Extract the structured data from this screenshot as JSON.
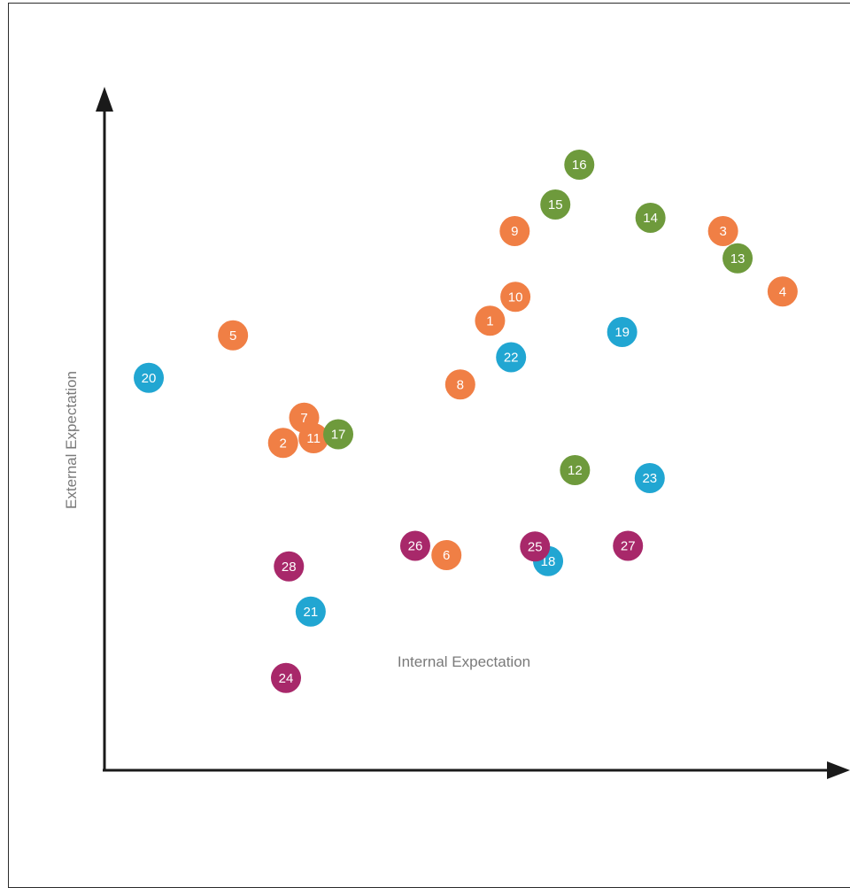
{
  "chart_data": {
    "type": "scatter",
    "title": "",
    "xlabel": "Internal Expectation",
    "ylabel": "External Expectation",
    "xlim": [
      0,
      100
    ],
    "ylim": [
      0,
      100
    ],
    "grid": false,
    "colors": {
      "orange": "#F07F45",
      "green": "#6E9A3C",
      "blue": "#21A6D2",
      "magenta": "#A8286A",
      "axis": "#1a1a1a"
    },
    "points": [
      {
        "label": "1",
        "x": 53.1,
        "y": 67.7,
        "color": "orange"
      },
      {
        "label": "2",
        "x": 24.6,
        "y": 49.3,
        "color": "orange"
      },
      {
        "label": "3",
        "x": 85.2,
        "y": 81.2,
        "color": "orange"
      },
      {
        "label": "4",
        "x": 93.4,
        "y": 72.1,
        "color": "orange"
      },
      {
        "label": "5",
        "x": 17.7,
        "y": 65.5,
        "color": "orange"
      },
      {
        "label": "6",
        "x": 47.1,
        "y": 32.4,
        "color": "orange"
      },
      {
        "label": "7",
        "x": 27.5,
        "y": 53.1,
        "color": "orange"
      },
      {
        "label": "8",
        "x": 49.0,
        "y": 58.1,
        "color": "orange"
      },
      {
        "label": "9",
        "x": 56.5,
        "y": 81.2,
        "color": "orange"
      },
      {
        "label": "10",
        "x": 56.6,
        "y": 71.3,
        "color": "orange"
      },
      {
        "label": "11",
        "x": 28.8,
        "y": 50.0,
        "color": "orange"
      },
      {
        "label": "12",
        "x": 64.8,
        "y": 45.2,
        "color": "green"
      },
      {
        "label": "13",
        "x": 87.2,
        "y": 77.1,
        "color": "green"
      },
      {
        "label": "14",
        "x": 75.2,
        "y": 83.2,
        "color": "green"
      },
      {
        "label": "15",
        "x": 62.1,
        "y": 85.2,
        "color": "green"
      },
      {
        "label": "16",
        "x": 65.4,
        "y": 91.2,
        "color": "green"
      },
      {
        "label": "17",
        "x": 32.2,
        "y": 50.6,
        "color": "green"
      },
      {
        "label": "18",
        "x": 61.1,
        "y": 31.5,
        "color": "blue"
      },
      {
        "label": "19",
        "x": 71.3,
        "y": 66.0,
        "color": "blue"
      },
      {
        "label": "20",
        "x": 6.1,
        "y": 59.1,
        "color": "blue"
      },
      {
        "label": "21",
        "x": 28.4,
        "y": 23.9,
        "color": "blue"
      },
      {
        "label": "22",
        "x": 56.0,
        "y": 62.2,
        "color": "blue"
      },
      {
        "label": "23",
        "x": 75.1,
        "y": 44.0,
        "color": "blue"
      },
      {
        "label": "24",
        "x": 25.0,
        "y": 13.9,
        "color": "magenta"
      },
      {
        "label": "25",
        "x": 59.3,
        "y": 33.7,
        "color": "magenta"
      },
      {
        "label": "26",
        "x": 42.8,
        "y": 33.8,
        "color": "magenta"
      },
      {
        "label": "27",
        "x": 72.1,
        "y": 33.8,
        "color": "magenta"
      },
      {
        "label": "28",
        "x": 25.4,
        "y": 30.7,
        "color": "magenta"
      }
    ]
  }
}
